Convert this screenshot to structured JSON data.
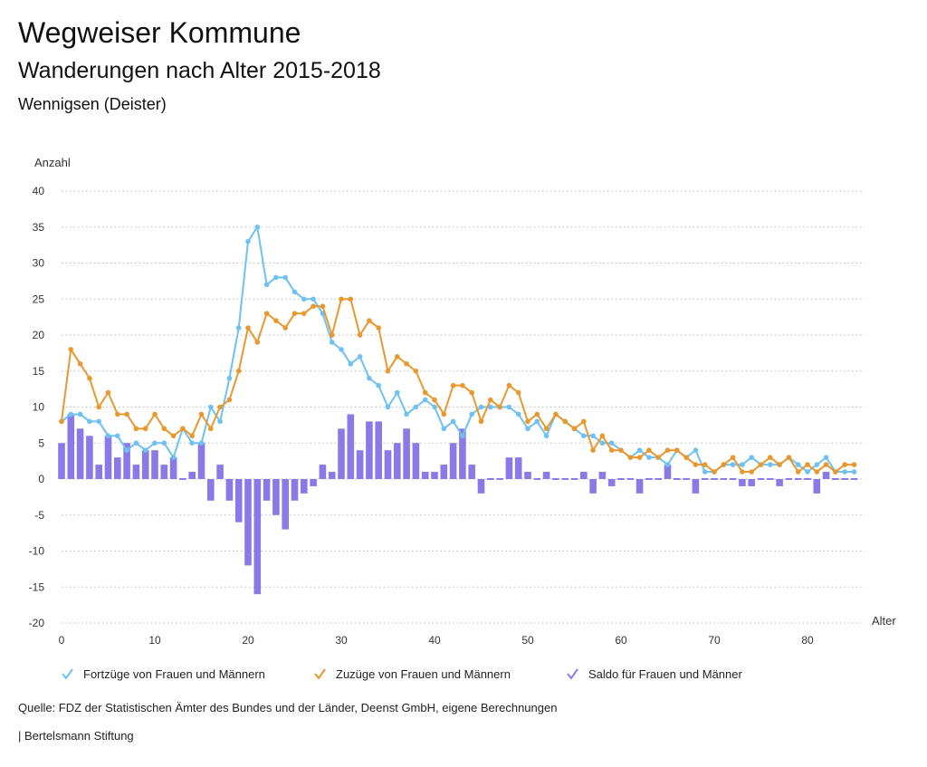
{
  "header": {
    "title": "Wegweiser Kommune",
    "subtitle": "Wanderungen nach Alter 2015-2018",
    "region": "Wennigsen (Deister)"
  },
  "footer": {
    "source": "Quelle: FDZ der Statistischen Ämter des Bundes und der Länder, Deenst GmbH, eigene Berechnungen",
    "brand": "| Bertelsmann Stiftung"
  },
  "colors": {
    "fortzuege": "#6ec1f0",
    "zuzuege": "#e8982e",
    "saldo": "#8a7ae8",
    "grid": "#bbbbbb"
  },
  "chart_data": {
    "type": "bar+line",
    "title": "Wanderungen nach Alter 2015-2018",
    "xlabel": "Alter",
    "ylabel": "Anzahl",
    "xlim": [
      0,
      85
    ],
    "ylim": [
      -20,
      40
    ],
    "yticks": [
      40,
      35,
      30,
      25,
      20,
      15,
      10,
      5,
      0,
      -5,
      -10,
      -15,
      -20
    ],
    "xticks": [
      0,
      10,
      20,
      30,
      40,
      50,
      60,
      70,
      80
    ],
    "grid": true,
    "legend_position": "bottom",
    "series": [
      {
        "name": "Fortzüge von Frauen und Männern",
        "kind": "line",
        "color": "#6ec1f0",
        "values": [
          8,
          9,
          9,
          8,
          8,
          6,
          6,
          4,
          5,
          4,
          5,
          5,
          3,
          7,
          5,
          5,
          10,
          8,
          14,
          21,
          33,
          35,
          27,
          28,
          28,
          26,
          25,
          25,
          23,
          19,
          18,
          16,
          17,
          14,
          13,
          10,
          12,
          9,
          10,
          11,
          10,
          7,
          8,
          6,
          9,
          10,
          10,
          10,
          10,
          9,
          7,
          8,
          6,
          9,
          8,
          7,
          6,
          6,
          5,
          5,
          4,
          3,
          4,
          3,
          3,
          2,
          4,
          3,
          4,
          1,
          1,
          2,
          2,
          2,
          3,
          2,
          2,
          2,
          3,
          2,
          1,
          2,
          3,
          1,
          1,
          1
        ]
      },
      {
        "name": "Zuzüge von Frauen und Männern",
        "kind": "line",
        "color": "#e8982e",
        "values": [
          8,
          18,
          16,
          14,
          10,
          12,
          9,
          9,
          7,
          7,
          9,
          7,
          6,
          7,
          6,
          9,
          7,
          10,
          11,
          15,
          21,
          19,
          23,
          22,
          21,
          23,
          23,
          24,
          24,
          20,
          25,
          25,
          20,
          22,
          21,
          15,
          17,
          16,
          15,
          12,
          11,
          9,
          13,
          13,
          12,
          8,
          11,
          10,
          13,
          12,
          8,
          9,
          7,
          9,
          8,
          7,
          8,
          4,
          6,
          4,
          4,
          3,
          3,
          4,
          3,
          4,
          4,
          3,
          2,
          2,
          1,
          2,
          3,
          1,
          1,
          2,
          3,
          2,
          3,
          1,
          2,
          1,
          2,
          1,
          2,
          2
        ]
      },
      {
        "name": "Saldo für Frauen und Männer",
        "kind": "bar",
        "color": "#8a7ae8",
        "values": [
          5,
          9,
          7,
          6,
          2,
          6,
          3,
          5,
          2,
          4,
          4,
          2,
          3,
          0,
          1,
          5,
          -3,
          2,
          -3,
          -6,
          -12,
          -16,
          -3,
          -5,
          -7,
          -3,
          -2,
          -1,
          2,
          1,
          7,
          9,
          4,
          8,
          8,
          4,
          5,
          7,
          5,
          1,
          1,
          2,
          5,
          7,
          2,
          -2,
          0,
          0,
          3,
          3,
          1,
          0,
          1,
          0,
          0,
          0,
          1,
          -2,
          1,
          -1,
          0,
          0,
          -2,
          0,
          0,
          2,
          0,
          0,
          -2,
          0,
          0,
          0,
          0,
          -1,
          -1,
          0,
          0,
          -1,
          0,
          0,
          0,
          -2,
          1,
          0,
          0,
          0
        ]
      }
    ]
  }
}
